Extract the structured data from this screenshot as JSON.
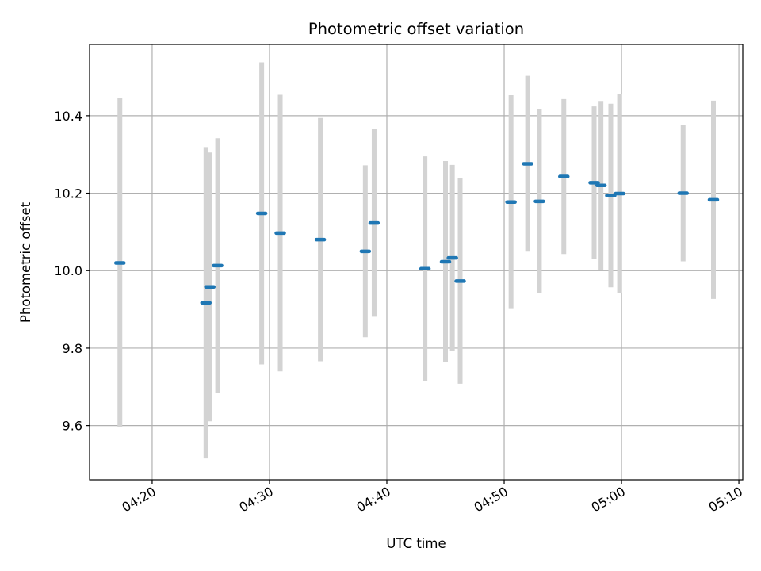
{
  "chart_data": {
    "type": "scatter",
    "title": "Photometric offset variation",
    "xlabel": "UTC time",
    "ylabel": "Photometric offset",
    "grid": true,
    "xlim": [
      "04:14:40",
      "05:10:20"
    ],
    "ylim": [
      9.46,
      10.584
    ],
    "x_ticks": [
      "04:20",
      "04:30",
      "04:40",
      "04:50",
      "05:00",
      "05:10"
    ],
    "y_ticks": [
      "9.6",
      "9.8",
      "10.0",
      "10.2",
      "10.4"
    ],
    "colors": {
      "marker": "#1f77b4",
      "errorbar": "#d3d3d3",
      "grid": "#b0b0b0"
    },
    "points": [
      {
        "t": "04:17:15",
        "y": 10.02,
        "err": 0.425
      },
      {
        "t": "04:24:35",
        "y": 9.917,
        "err": 0.402
      },
      {
        "t": "04:24:55",
        "y": 9.958,
        "err": 0.347
      },
      {
        "t": "04:25:35",
        "y": 10.013,
        "err": 0.329
      },
      {
        "t": "04:29:20",
        "y": 10.148,
        "err": 0.39
      },
      {
        "t": "04:30:55",
        "y": 10.097,
        "err": 0.357
      },
      {
        "t": "04:34:20",
        "y": 10.08,
        "err": 0.314
      },
      {
        "t": "04:38:10",
        "y": 10.05,
        "err": 0.222
      },
      {
        "t": "04:38:55",
        "y": 10.123,
        "err": 0.242
      },
      {
        "t": "04:43:15",
        "y": 10.005,
        "err": 0.29
      },
      {
        "t": "04:45:00",
        "y": 10.023,
        "err": 0.26
      },
      {
        "t": "04:45:35",
        "y": 10.033,
        "err": 0.24
      },
      {
        "t": "04:46:15",
        "y": 9.973,
        "err": 0.265
      },
      {
        "t": "04:50:35",
        "y": 10.177,
        "err": 0.276
      },
      {
        "t": "04:52:00",
        "y": 10.276,
        "err": 0.227
      },
      {
        "t": "04:53:00",
        "y": 10.179,
        "err": 0.237
      },
      {
        "t": "04:55:05",
        "y": 10.243,
        "err": 0.2
      },
      {
        "t": "04:57:40",
        "y": 10.227,
        "err": 0.197
      },
      {
        "t": "04:58:15",
        "y": 10.22,
        "err": 0.218
      },
      {
        "t": "04:59:05",
        "y": 10.194,
        "err": 0.237
      },
      {
        "t": "04:59:50",
        "y": 10.199,
        "err": 0.256
      },
      {
        "t": "05:05:15",
        "y": 10.2,
        "err": 0.176
      },
      {
        "t": "05:07:50",
        "y": 10.183,
        "err": 0.256
      }
    ]
  }
}
